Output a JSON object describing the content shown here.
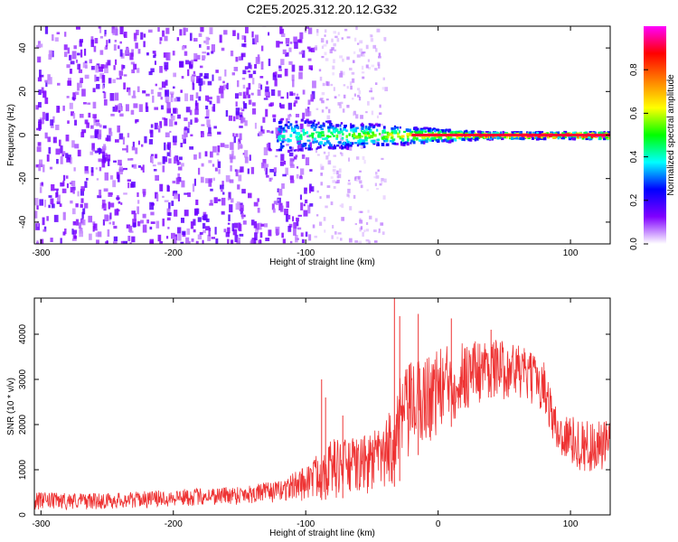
{
  "title": "C2E5.2025.312.20.12.G32",
  "chart_data": [
    {
      "type": "heatmap",
      "xlabel": "Height of straight line (km)",
      "ylabel": "Frequency (Hz)",
      "xlim": [
        -305,
        130
      ],
      "ylim": [
        -50,
        50
      ],
      "x_ticks": [
        -300,
        -200,
        -100,
        0,
        100
      ],
      "y_ticks": [
        -40,
        -20,
        0,
        20,
        40
      ],
      "x_tick_labels": [
        "-300",
        "-200",
        "-100",
        "0",
        "100"
      ],
      "y_tick_labels": [
        "-40",
        "-20",
        "0",
        "20",
        "40"
      ],
      "regions": [
        {
          "name": "noise",
          "x_range": [
            -305,
            -95
          ],
          "freq_range": [
            -50,
            50
          ]
        },
        {
          "name": "sparse noise",
          "x_range": [
            -95,
            -40
          ],
          "freq_range": [
            -50,
            50
          ]
        },
        {
          "name": "signal band",
          "x_range": [
            -122,
            130
          ],
          "freq_center": 0,
          "freq_halfwidth_start": 8,
          "freq_halfwidth_end": 1.5
        }
      ],
      "colorbar": {
        "label": "Normalized spectral amplitude",
        "range": [
          0,
          1
        ],
        "ticks": [
          0.0,
          0.2,
          0.4,
          0.6,
          0.8
        ],
        "tick_labels": [
          "0.0",
          "0.2",
          "0.4",
          "0.6",
          "0.8"
        ],
        "colormap": [
          "#ffffff",
          "#8000ff",
          "#0000ff",
          "#00ffff",
          "#00ff00",
          "#ffff00",
          "#ff8000",
          "#ff0000",
          "#ff00ff"
        ]
      }
    },
    {
      "type": "line",
      "xlabel": "Height of straight line (km)",
      "ylabel": "SNR (10 * v/v)",
      "xlim": [
        -305,
        130
      ],
      "ylim": [
        0,
        4800
      ],
      "x_ticks": [
        -300,
        -200,
        -100,
        0,
        100
      ],
      "y_ticks": [
        0,
        1000,
        2000,
        3000,
        4000
      ],
      "x_tick_labels": [
        "-300",
        "-200",
        "-100",
        "0",
        "100"
      ],
      "y_tick_labels": [
        "0",
        "1000",
        "2000",
        "3000",
        "4000"
      ],
      "color": "#ee3333",
      "envelope": {
        "x": [
          -305,
          -250,
          -200,
          -150,
          -120,
          -100,
          -80,
          -60,
          -40,
          -30,
          -20,
          0,
          20,
          40,
          60,
          80,
          90,
          110,
          130
        ],
        "low": [
          100,
          120,
          180,
          220,
          280,
          300,
          350,
          400,
          450,
          700,
          1200,
          1700,
          2200,
          2600,
          2500,
          2300,
          1200,
          900,
          800
        ],
        "high": [
          500,
          480,
          560,
          650,
          750,
          1100,
          1700,
          1700,
          2000,
          3000,
          3400,
          3700,
          3900,
          3900,
          3800,
          3400,
          2300,
          2100,
          2100
        ]
      },
      "spikes": [
        {
          "x": -33,
          "y": 4800
        },
        {
          "x": -29,
          "y": 4400
        },
        {
          "x": -15,
          "y": 4450
        },
        {
          "x": 10,
          "y": 4350
        },
        {
          "x": 40,
          "y": 4100
        },
        {
          "x": -85,
          "y": 2600
        },
        {
          "x": -72,
          "y": 2200
        },
        {
          "x": -88,
          "y": 3000
        }
      ]
    }
  ]
}
